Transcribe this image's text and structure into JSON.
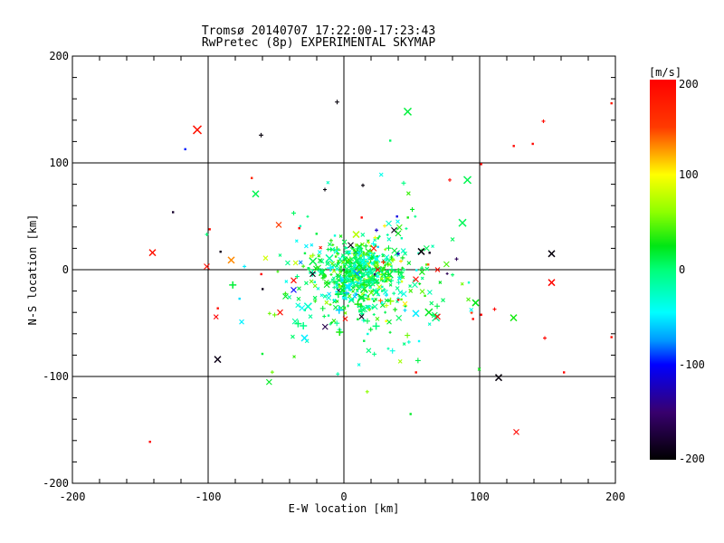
{
  "title": {
    "line1": "Tromsø 20140707 17:22:00-17:23:43",
    "line2": "RwPretec (8p) EXPERIMENTAL SKYMAP"
  },
  "chart_data": {
    "type": "scatter",
    "title": "Tromsø 20140707 17:22:00-17:23:43",
    "subtitle": "RwPretec (8p) EXPERIMENTAL SKYMAP",
    "xlabel": "E-W location [km]",
    "ylabel": "N-S location [km]",
    "xlim": [
      -200,
      200
    ],
    "ylim": [
      -200,
      200
    ],
    "x_ticks": [
      -200,
      -100,
      0,
      100,
      200
    ],
    "y_ticks": [
      -200,
      -100,
      0,
      100,
      200
    ],
    "x_tick_labels": [
      "-200",
      "-100",
      "0",
      "100",
      "200"
    ],
    "y_tick_labels": [
      "-200",
      "-100",
      "0",
      "100",
      "200"
    ],
    "minor_tick_step_km": 20,
    "grid": "solid black major gridlines at -100, 0, 100 on both axes",
    "background": "#ffffff",
    "axis_color": "#000000",
    "colorbar": {
      "label": "[m/s]",
      "range": [
        -200,
        200
      ],
      "ticks": [
        200,
        100,
        0,
        -100,
        -200
      ],
      "tick_labels": [
        "200",
        "100",
        "0",
        "-100",
        "-200"
      ],
      "position": "right",
      "stops": [
        {
          "v": 200,
          "color": "#FF0000"
        },
        {
          "v": 150,
          "color": "#FF3A00"
        },
        {
          "v": 100,
          "color": "#FFFF00"
        },
        {
          "v": 60,
          "color": "#8CFF00"
        },
        {
          "v": 25,
          "color": "#00E614"
        },
        {
          "v": 0,
          "color": "#00FF78"
        },
        {
          "v": -45,
          "color": "#00FFFF"
        },
        {
          "v": -75,
          "color": "#0096FF"
        },
        {
          "v": -100,
          "color": "#0000FF"
        },
        {
          "v": -150,
          "color": "#38006E"
        },
        {
          "v": -200,
          "color": "#000000"
        }
      ]
    },
    "points": [
      {
        "x": -108,
        "y": 131,
        "v": 185,
        "m": "x",
        "s": 9
      },
      {
        "x": -5,
        "y": 157,
        "v": -195,
        "m": "+",
        "s": 5
      },
      {
        "x": -61,
        "y": 126,
        "v": -195,
        "m": "+",
        "s": 5
      },
      {
        "x": -126,
        "y": 54,
        "v": -180,
        "m": "dot",
        "s": 3
      },
      {
        "x": -68,
        "y": 86,
        "v": 170,
        "m": "dot",
        "s": 3
      },
      {
        "x": -65,
        "y": 71,
        "v": 10,
        "m": "x",
        "s": 7
      },
      {
        "x": -117,
        "y": 113,
        "v": -95,
        "m": "dot",
        "s": 3
      },
      {
        "x": -48,
        "y": 42,
        "v": 150,
        "m": "x",
        "s": 6
      },
      {
        "x": -33,
        "y": 39,
        "v": 200,
        "m": "dot",
        "s": 2
      },
      {
        "x": -101,
        "y": 33,
        "v": 0,
        "m": "+",
        "s": 4
      },
      {
        "x": -99,
        "y": 38,
        "v": 190,
        "m": "dot",
        "s": 2
      },
      {
        "x": -91,
        "y": 17,
        "v": -190,
        "m": "dot",
        "s": 3
      },
      {
        "x": -83,
        "y": 9,
        "v": 130,
        "m": "x",
        "s": 7
      },
      {
        "x": -101,
        "y": 3,
        "v": 190,
        "m": "x",
        "s": 6
      },
      {
        "x": -141,
        "y": 16,
        "v": 185,
        "m": "x",
        "s": 7
      },
      {
        "x": -93,
        "y": -84,
        "v": -190,
        "m": "x",
        "s": 7
      },
      {
        "x": -143,
        "y": -161,
        "v": 200,
        "m": "dot",
        "s": 3
      },
      {
        "x": -61,
        "y": -4,
        "v": 200,
        "m": "dot",
        "s": 2
      },
      {
        "x": -37,
        "y": -10,
        "v": 195,
        "m": "x",
        "s": 6
      },
      {
        "x": -23,
        "y": -4,
        "v": -195,
        "m": "x",
        "s": 6
      },
      {
        "x": -37,
        "y": -19,
        "v": -100,
        "m": "x",
        "s": 6
      },
      {
        "x": -43,
        "y": -25,
        "v": 20,
        "m": "x",
        "s": 6
      },
      {
        "x": -77,
        "y": -27,
        "v": -55,
        "m": "dot",
        "s": 3
      },
      {
        "x": -93,
        "y": -36,
        "v": 190,
        "m": "dot",
        "s": 2
      },
      {
        "x": -47,
        "y": -40,
        "v": 190,
        "m": "x",
        "s": 6
      },
      {
        "x": -29,
        "y": -64,
        "v": -50,
        "m": "x",
        "s": 7
      },
      {
        "x": -60,
        "y": -18,
        "v": -190,
        "m": "dot",
        "s": 2
      },
      {
        "x": -14,
        "y": 75,
        "v": -195,
        "m": "+",
        "s": 4
      },
      {
        "x": 47,
        "y": 148,
        "v": 15,
        "m": "x",
        "s": 8
      },
      {
        "x": 34,
        "y": 121,
        "v": 5,
        "m": "dot",
        "s": 3
      },
      {
        "x": 147,
        "y": 139,
        "v": 190,
        "m": "+",
        "s": 4
      },
      {
        "x": 125,
        "y": 116,
        "v": 195,
        "m": "dot",
        "s": 2
      },
      {
        "x": 139,
        "y": 118,
        "v": 195,
        "m": "dot",
        "s": 2
      },
      {
        "x": 197,
        "y": 156,
        "v": 180,
        "m": "dot",
        "s": 2
      },
      {
        "x": 14,
        "y": 79,
        "v": -195,
        "m": "+",
        "s": 4
      },
      {
        "x": 78,
        "y": 84,
        "v": 195,
        "m": "+",
        "s": 4
      },
      {
        "x": 91,
        "y": 84,
        "v": 10,
        "m": "x",
        "s": 8
      },
      {
        "x": 13,
        "y": 49,
        "v": 195,
        "m": "dot",
        "s": 2
      },
      {
        "x": 39,
        "y": 50,
        "v": -110,
        "m": "dot",
        "s": 3
      },
      {
        "x": 47,
        "y": 49,
        "v": 30,
        "m": "dot",
        "s": 3
      },
      {
        "x": 30,
        "y": 41,
        "v": 105,
        "m": "+",
        "s": 4
      },
      {
        "x": 37,
        "y": 37,
        "v": -190,
        "m": "x",
        "s": 6
      },
      {
        "x": 9,
        "y": 33,
        "v": 75,
        "m": "x",
        "s": 7
      },
      {
        "x": 40,
        "y": 34,
        "v": 25,
        "m": "x",
        "s": 6
      },
      {
        "x": 24,
        "y": 37,
        "v": -120,
        "m": "+",
        "s": 4
      },
      {
        "x": 23,
        "y": 30,
        "v": 100,
        "m": "+",
        "s": 4
      },
      {
        "x": 5,
        "y": 23,
        "v": -190,
        "m": "x",
        "s": 6
      },
      {
        "x": 22,
        "y": 20,
        "v": 190,
        "m": "x",
        "s": 6
      },
      {
        "x": 57,
        "y": 17,
        "v": -195,
        "m": "x",
        "s": 7
      },
      {
        "x": 63,
        "y": 16,
        "v": -190,
        "m": "dot",
        "s": 2
      },
      {
        "x": 83,
        "y": 10,
        "v": -160,
        "m": "+",
        "s": 4
      },
      {
        "x": 62,
        "y": 5,
        "v": 140,
        "m": "dot",
        "s": 2
      },
      {
        "x": 101,
        "y": 99,
        "v": 195,
        "m": "dot",
        "s": 2
      },
      {
        "x": 153,
        "y": 15,
        "v": -195,
        "m": "x",
        "s": 7
      },
      {
        "x": 153,
        "y": -12,
        "v": 195,
        "m": "x",
        "s": 7
      },
      {
        "x": 53,
        "y": -9,
        "v": 195,
        "m": "x",
        "s": 6
      },
      {
        "x": 97,
        "y": -31,
        "v": 25,
        "m": "x",
        "s": 7
      },
      {
        "x": 111,
        "y": -37,
        "v": 195,
        "m": "+",
        "s": 4
      },
      {
        "x": 101,
        "y": -42,
        "v": 200,
        "m": "dot",
        "s": 2
      },
      {
        "x": 125,
        "y": -45,
        "v": 30,
        "m": "x",
        "s": 7
      },
      {
        "x": 69,
        "y": -44,
        "v": 195,
        "m": "x",
        "s": 6
      },
      {
        "x": 95,
        "y": -46,
        "v": 195,
        "m": "dot",
        "s": 2
      },
      {
        "x": 148,
        "y": -64,
        "v": 195,
        "m": "+",
        "s": 4
      },
      {
        "x": 197,
        "y": -63,
        "v": 190,
        "m": "dot",
        "s": 2
      },
      {
        "x": 162,
        "y": -96,
        "v": 195,
        "m": "dot",
        "s": 2
      },
      {
        "x": 114,
        "y": -101,
        "v": -195,
        "m": "x",
        "s": 7
      },
      {
        "x": 53,
        "y": -41,
        "v": -50,
        "m": "x",
        "s": 7
      },
      {
        "x": 53,
        "y": -96,
        "v": 190,
        "m": "dot",
        "s": 3
      },
      {
        "x": 49,
        "y": -135,
        "v": 20,
        "m": "dot",
        "s": 3
      },
      {
        "x": 127,
        "y": -152,
        "v": 195,
        "m": "x",
        "s": 6
      },
      {
        "x": 69,
        "y": 0,
        "v": 190,
        "m": "x",
        "s": 5
      },
      {
        "x": 42,
        "y": 8,
        "v": 110,
        "m": "+",
        "s": 4
      },
      {
        "x": 40,
        "y": 15,
        "v": -120,
        "m": "+",
        "s": 4
      },
      {
        "x": 25,
        "y": 0,
        "v": 190,
        "m": "x",
        "s": 5
      },
      {
        "x": 27,
        "y": -29,
        "v": 140,
        "m": "+",
        "s": 5
      },
      {
        "x": 40,
        "y": -28,
        "v": 200,
        "m": "dot",
        "s": 2
      },
      {
        "x": 45,
        "y": -32,
        "v": 105,
        "m": "x",
        "s": 5
      },
      {
        "x": 45,
        "y": -38,
        "v": -55,
        "m": "+",
        "s": 4
      },
      {
        "x": 13,
        "y": -44,
        "v": -190,
        "m": "x",
        "s": 5
      },
      {
        "x": 1,
        "y": -46,
        "v": 190,
        "m": "x",
        "s": 5
      },
      {
        "x": 31,
        "y": -48,
        "v": 100,
        "m": "dot",
        "s": 3
      }
    ],
    "cluster": {
      "description": "dense central echo cluster, mostly spring-green/teal small crosses",
      "seed": 20140707,
      "groups": [
        {
          "count": 400,
          "cx": 13,
          "cy": -4,
          "sx": 15,
          "sy": 14
        },
        {
          "count": 170,
          "cx": 10,
          "cy": -10,
          "sx": 28,
          "sy": 26
        },
        {
          "count": 90,
          "cx": 4,
          "cy": -20,
          "sx": 46,
          "sy": 40
        }
      ],
      "velocity_mix": [
        {
          "weight": 0.62,
          "mean": 10,
          "sd": 18
        },
        {
          "weight": 0.22,
          "mean": -38,
          "sd": 13
        },
        {
          "weight": 0.12,
          "mean": 55,
          "sd": 18
        },
        {
          "weight": 0.04,
          "mean": 0,
          "sd": 130
        }
      ],
      "marker_mix": [
        {
          "weight": 0.5,
          "m": "x"
        },
        {
          "weight": 0.35,
          "m": "+"
        },
        {
          "weight": 0.15,
          "m": "dot"
        }
      ],
      "size_weights": [
        [
          3,
          0.38
        ],
        [
          4,
          0.27
        ],
        [
          5,
          0.15
        ],
        [
          6,
          0.12
        ],
        [
          8,
          0.08
        ]
      ]
    }
  }
}
